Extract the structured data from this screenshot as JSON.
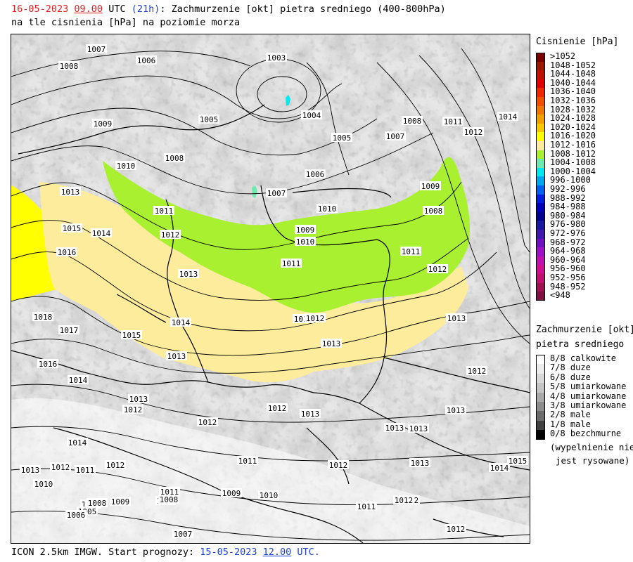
{
  "header": {
    "date": "16-05-2023",
    "time": "09.00",
    "utc": "UTC",
    "lead_open": "(",
    "lead": "21h",
    "lead_close": ")",
    "title_rest": ": Zachmurzenie [okt] pietra sredniego (400-800hPa)",
    "line2": "na tle cisnienia [hPa] na poziomie morza"
  },
  "footer": {
    "prefix": "ICON 2.5km IMGW. Start prognozy: ",
    "start_date": "15-05-2023",
    "start_time": "12.00",
    "utc": "UTC."
  },
  "legend_pressure": {
    "title": "Cisnienie [hPa]",
    "items": [
      {
        "label": ">1052",
        "color": "#7a0000"
      },
      {
        "label": "1048-1052",
        "color": "#9a1800"
      },
      {
        "label": "1044-1048",
        "color": "#c01000"
      },
      {
        "label": "1040-1044",
        "color": "#e00000"
      },
      {
        "label": "1036-1040",
        "color": "#f02800"
      },
      {
        "label": "1032-1036",
        "color": "#f05000"
      },
      {
        "label": "1028-1032",
        "color": "#f07800"
      },
      {
        "label": "1024-1028",
        "color": "#f0a000"
      },
      {
        "label": "1020-1024",
        "color": "#f8c800"
      },
      {
        "label": "1016-1020",
        "color": "#ffff00"
      },
      {
        "label": "1012-1016",
        "color": "#fcec9c"
      },
      {
        "label": "1008-1012",
        "color": "#a8f030"
      },
      {
        "label": "1004-1008",
        "color": "#70e8b0"
      },
      {
        "label": "1000-1004",
        "color": "#00e8f0"
      },
      {
        "label": "996-1000",
        "color": "#00a8f0"
      },
      {
        "label": "992-996",
        "color": "#0060f0"
      },
      {
        "label": "988-992",
        "color": "#0020e0"
      },
      {
        "label": "984-988",
        "color": "#0000b8"
      },
      {
        "label": "980-984",
        "color": "#000090"
      },
      {
        "label": "976-980",
        "color": "#1818a0"
      },
      {
        "label": "972-976",
        "color": "#4018b0"
      },
      {
        "label": "968-972",
        "color": "#7010c0"
      },
      {
        "label": "964-968",
        "color": "#a010c8"
      },
      {
        "label": "960-964",
        "color": "#c010b0"
      },
      {
        "label": "956-960",
        "color": "#d01090"
      },
      {
        "label": "952-956",
        "color": "#c01070"
      },
      {
        "label": "948-952",
        "color": "#a01050"
      },
      {
        "label": "<948",
        "color": "#801040"
      }
    ]
  },
  "legend_clouds": {
    "title1": "Zachmurzenie [okt]",
    "title2": "pietra sredniego",
    "items": [
      {
        "label": "8/8 calkowite",
        "color": "#ffffff"
      },
      {
        "label": "7/8 duze",
        "color": "#ececec"
      },
      {
        "label": "6/8 duze",
        "color": "#d8d8d8"
      },
      {
        "label": "5/8 umiarkowane",
        "color": "#c4c4c4"
      },
      {
        "label": "4/8 umiarkowane",
        "color": "#a8a8a8"
      },
      {
        "label": "3/8 umiarkowane",
        "color": "#8c8c8c"
      },
      {
        "label": "2/8 male",
        "color": "#6c6c6c"
      },
      {
        "label": "1/8 male",
        "color": "#404040"
      },
      {
        "label": "0/8 bezchmurne",
        "color": "#000000"
      }
    ],
    "note1": "(wypelnienie nie",
    "note2": "jest rysowane)"
  },
  "isobar_labels": [
    "1007",
    "1008",
    "1006",
    "1003",
    "1005",
    "1004",
    "1005",
    "1007",
    "1008",
    "1011",
    "1012",
    "1014",
    "1009",
    "1010",
    "1008",
    "1006",
    "1007",
    "1009",
    "1010",
    "1013",
    "1011",
    "1008",
    "1009",
    "1010",
    "1011",
    "1012",
    "1015",
    "1014",
    "1012",
    "1016",
    "1013",
    "1011",
    "1012",
    "1018",
    "1014",
    "1017",
    "1015",
    "1012",
    "1013",
    "1013",
    "1016",
    "1014",
    "1013",
    "1012",
    "1013",
    "1012",
    "1014",
    "1013",
    "1013",
    "1013",
    "1013",
    "1012",
    "1012",
    "1012",
    "1011",
    "1012",
    "1013",
    "1014",
    "1015",
    "1013",
    "1012",
    "1011",
    "1012",
    "1009",
    "1010",
    "1011",
    "1010",
    "1007",
    "1008",
    "1009",
    "1005",
    "1006",
    "1007",
    "1011",
    "1012",
    "1012",
    "1010",
    "1008"
  ]
}
